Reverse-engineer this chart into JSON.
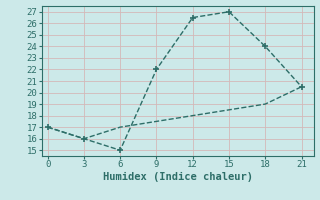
{
  "xlabel": "Humidex (Indice chaleur)",
  "line1_x": [
    0,
    3,
    6,
    9,
    12,
    15,
    18,
    21
  ],
  "line1_y": [
    17,
    16,
    15,
    22,
    26.5,
    27,
    24,
    20.5
  ],
  "line2_x": [
    0,
    3,
    6,
    9,
    12,
    15,
    18,
    21
  ],
  "line2_y": [
    17,
    16,
    17,
    17.5,
    18,
    18.5,
    19,
    20.5
  ],
  "line_color": "#2d6e68",
  "bg_color": "#cce9e9",
  "grid_color": "#b8d8d8",
  "spine_color": "#2d6e68",
  "xlim": [
    -0.5,
    22
  ],
  "ylim": [
    14.5,
    27.5
  ],
  "xticks": [
    0,
    3,
    6,
    9,
    12,
    15,
    18,
    21
  ],
  "yticks": [
    15,
    16,
    17,
    18,
    19,
    20,
    21,
    22,
    23,
    24,
    25,
    26,
    27
  ],
  "tick_fontsize": 6.5,
  "label_fontsize": 7.5
}
